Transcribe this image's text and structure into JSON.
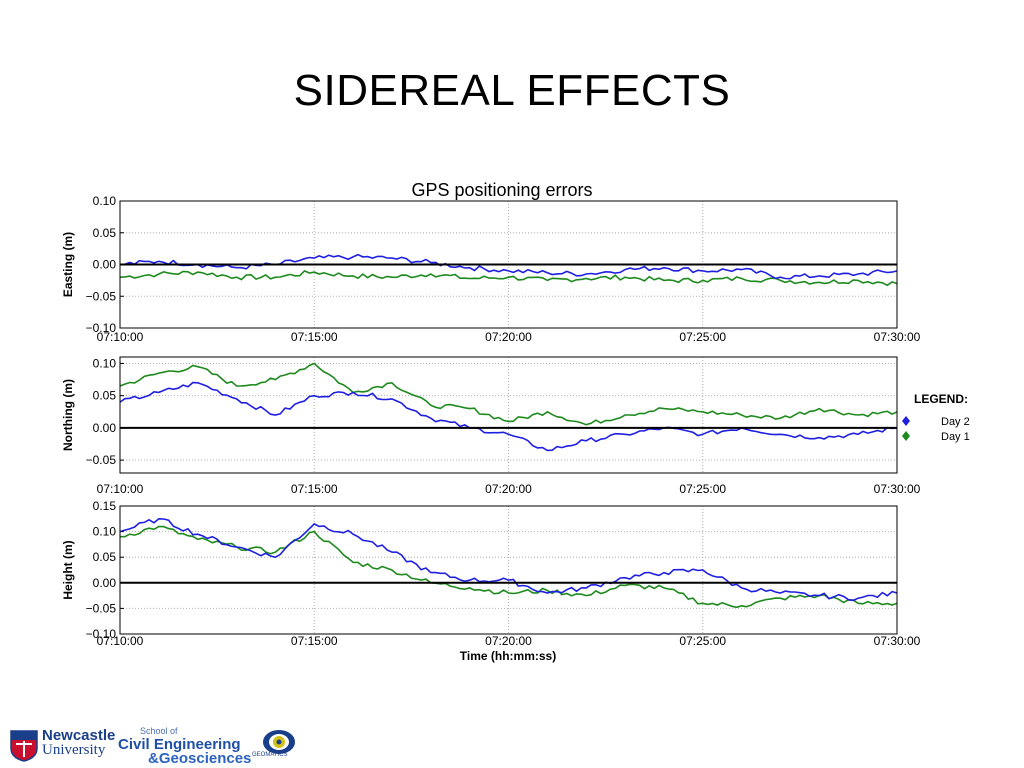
{
  "slide": {
    "title": "SIDEREAL EFFECTS"
  },
  "colors": {
    "day2": "#1f1fe0",
    "day1": "#1e8a1e",
    "zero_line": "#000000",
    "grid": "#b0b0b0"
  },
  "chart_data": {
    "type": "line",
    "title": "GPS positioning errors",
    "xlabel": "Time (hh:mm:ss)",
    "x_ticks": [
      "07:10:00",
      "07:15:00",
      "07:20:00",
      "07:25:00",
      "07:30:00"
    ],
    "x_range_minutes": [
      0,
      20
    ],
    "legend": {
      "title": "LEGEND:",
      "placement": "right",
      "entries": [
        "Day 2",
        "Day 1"
      ]
    },
    "grid": true,
    "panels": [
      {
        "ylabel": "Easting (m)",
        "ylim": [
          -0.1,
          0.1
        ],
        "y_ticks": [
          "0.10",
          "0.05",
          "0.00",
          "−0.05",
          "−0.10"
        ],
        "x": [
          0,
          1,
          2,
          3,
          4,
          5,
          6,
          7,
          8,
          9,
          10,
          11,
          12,
          13,
          14,
          15,
          16,
          17,
          18,
          19,
          20
        ],
        "series": [
          {
            "name": "Day 2",
            "values": [
              0.0,
              0.005,
              0.0,
              -0.005,
              0.0,
              0.01,
              0.012,
              0.01,
              0.003,
              -0.005,
              -0.01,
              -0.013,
              -0.015,
              -0.008,
              -0.005,
              -0.01,
              -0.008,
              -0.02,
              -0.018,
              -0.015,
              -0.01
            ]
          },
          {
            "name": "Day 1",
            "values": [
              -0.02,
              -0.015,
              -0.012,
              -0.02,
              -0.02,
              -0.012,
              -0.018,
              -0.02,
              -0.015,
              -0.022,
              -0.02,
              -0.025,
              -0.022,
              -0.02,
              -0.025,
              -0.025,
              -0.022,
              -0.025,
              -0.028,
              -0.025,
              -0.03
            ]
          }
        ]
      },
      {
        "ylabel": "Northing (m)",
        "ylim": [
          -0.07,
          0.11
        ],
        "y_ticks": [
          "0.10",
          "0.05",
          "0.00",
          "−0.05"
        ],
        "x": [
          0,
          1,
          2,
          3,
          4,
          5,
          6,
          7,
          8,
          9,
          10,
          11,
          12,
          13,
          14,
          15,
          16,
          17,
          18,
          19,
          20
        ],
        "series": [
          {
            "name": "Day 2",
            "values": [
              0.04,
              0.055,
              0.07,
              0.045,
              0.02,
              0.05,
              0.055,
              0.045,
              0.015,
              0.0,
              -0.01,
              -0.035,
              -0.02,
              -0.01,
              0.0,
              -0.01,
              0.0,
              -0.01,
              -0.015,
              -0.01,
              0.0
            ]
          },
          {
            "name": "Day 1",
            "values": [
              0.065,
              0.085,
              0.095,
              0.065,
              0.075,
              0.1,
              0.055,
              0.07,
              0.035,
              0.03,
              0.01,
              0.025,
              0.005,
              0.02,
              0.03,
              0.025,
              0.02,
              0.015,
              0.03,
              0.02,
              0.025
            ]
          }
        ]
      },
      {
        "ylabel": "Height (m)",
        "ylim": [
          -0.1,
          0.15
        ],
        "y_ticks": [
          "0.15",
          "0.10",
          "0.05",
          "0.00",
          "−0.05",
          "−0.10"
        ],
        "x": [
          0,
          1,
          2,
          3,
          4,
          5,
          6,
          7,
          8,
          9,
          10,
          11,
          12,
          13,
          14,
          15,
          16,
          17,
          18,
          19,
          20
        ],
        "series": [
          {
            "name": "Day 2",
            "values": [
              0.1,
              0.125,
              0.095,
              0.07,
              0.05,
              0.115,
              0.095,
              0.06,
              0.02,
              0.005,
              0.005,
              -0.02,
              -0.01,
              0.01,
              0.02,
              0.025,
              -0.01,
              -0.02,
              -0.025,
              -0.03,
              -0.02
            ]
          },
          {
            "name": "Day 1",
            "values": [
              0.09,
              0.11,
              0.085,
              0.07,
              0.06,
              0.1,
              0.04,
              0.025,
              0.0,
              -0.01,
              -0.02,
              -0.015,
              -0.025,
              -0.005,
              -0.01,
              -0.04,
              -0.045,
              -0.03,
              -0.025,
              -0.04,
              -0.04
            ]
          }
        ]
      }
    ]
  },
  "footer": {
    "university_line1": "Newcastle",
    "university_line2": "University",
    "school_line0": "School of",
    "school_line1": "Civil Engineering",
    "school_line2": "&Geosciences",
    "geomatics": "GEOMATICS"
  }
}
